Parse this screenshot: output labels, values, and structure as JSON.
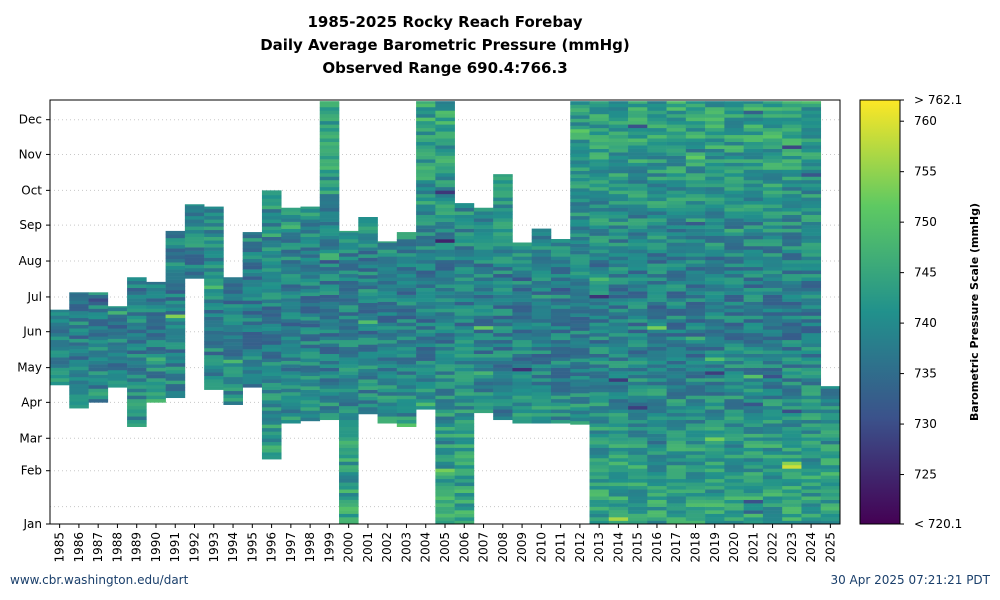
{
  "title_lines": [
    "1985-2025 Rocky Reach Forebay",
    "Daily Average Barometric Pressure (mmHg)",
    "Observed Range 690.4:766.3"
  ],
  "footer": {
    "left": "www.cbr.washington.edu/dart",
    "right": "30 Apr 2025 07:21:21 PDT"
  },
  "chart_data": {
    "type": "heatmap",
    "title": "1985-2025 Rocky Reach Forebay",
    "subtitle": "Daily Average Barometric Pressure (mmHg)",
    "observed_range": "Observed Range 690.4:766.3",
    "x_categories": [
      "1985",
      "1986",
      "1987",
      "1988",
      "1989",
      "1990",
      "1991",
      "1992",
      "1993",
      "1994",
      "1995",
      "1996",
      "1997",
      "1998",
      "1999",
      "2000",
      "2001",
      "2002",
      "2003",
      "2004",
      "2005",
      "2006",
      "2007",
      "2008",
      "2009",
      "2010",
      "2011",
      "2012",
      "2013",
      "2014",
      "2015",
      "2016",
      "2017",
      "2018",
      "2019",
      "2020",
      "2021",
      "2022",
      "2023",
      "2024",
      "2025"
    ],
    "y_categories": [
      "Jan",
      "Feb",
      "Mar",
      "Apr",
      "May",
      "Jun",
      "Jul",
      "Aug",
      "Sep",
      "Oct",
      "Nov",
      "Dec"
    ],
    "colorbar": {
      "label": "Barometric Pressure Scale (mmHg)",
      "min": 720.1,
      "max": 762.1,
      "ticks": [
        725,
        730,
        735,
        740,
        745,
        750,
        755,
        760
      ],
      "min_label": "< 720.1",
      "max_label": "> 762.1",
      "colormap": [
        "#440154",
        "#3b528b",
        "#21918c",
        "#5ec962",
        "#fde725"
      ]
    },
    "coverage": [
      {
        "year": "1985",
        "start_day": 120,
        "end_day": 185
      },
      {
        "year": "1986",
        "start_day": 100,
        "end_day": 200
      },
      {
        "year": "1987",
        "start_day": 105,
        "end_day": 200
      },
      {
        "year": "1988",
        "start_day": 118,
        "end_day": 188
      },
      {
        "year": "1989",
        "start_day": 84,
        "end_day": 213
      },
      {
        "year": "1990",
        "start_day": 105,
        "end_day": 209
      },
      {
        "year": "1991",
        "start_day": 109,
        "end_day": 253
      },
      {
        "year": "1992",
        "start_day": 212,
        "end_day": 276
      },
      {
        "year": "1993",
        "start_day": 116,
        "end_day": 274
      },
      {
        "year": "1994",
        "start_day": 103,
        "end_day": 213
      },
      {
        "year": "1995",
        "start_day": 118,
        "end_day": 252
      },
      {
        "year": "1996",
        "start_day": 56,
        "end_day": 288
      },
      {
        "year": "1997",
        "start_day": 87,
        "end_day": 273
      },
      {
        "year": "1998",
        "start_day": 89,
        "end_day": 274
      },
      {
        "year": "1999",
        "start_day": 90,
        "end_day": 365
      },
      {
        "year": "2000",
        "start_day": 0,
        "end_day": 253
      },
      {
        "year": "2001",
        "start_day": 95,
        "end_day": 265
      },
      {
        "year": "2002",
        "start_day": 87,
        "end_day": 244
      },
      {
        "year": "2003",
        "start_day": 84,
        "end_day": 252
      },
      {
        "year": "2004",
        "start_day": 99,
        "end_day": 365
      },
      {
        "year": "2005",
        "start_day": 0,
        "end_day": 365
      },
      {
        "year": "2006",
        "start_day": 0,
        "end_day": 277
      },
      {
        "year": "2007",
        "start_day": 96,
        "end_day": 273
      },
      {
        "year": "2008",
        "start_day": 90,
        "end_day": 302
      },
      {
        "year": "2009",
        "start_day": 87,
        "end_day": 243
      },
      {
        "year": "2010",
        "start_day": 87,
        "end_day": 255
      },
      {
        "year": "2011",
        "start_day": 87,
        "end_day": 246
      },
      {
        "year": "2012",
        "start_day": 86,
        "end_day": 365
      },
      {
        "year": "2013",
        "start_day": 0,
        "end_day": 365
      },
      {
        "year": "2014",
        "start_day": 0,
        "end_day": 365
      },
      {
        "year": "2015",
        "start_day": 0,
        "end_day": 365
      },
      {
        "year": "2016",
        "start_day": 0,
        "end_day": 365
      },
      {
        "year": "2017",
        "start_day": 0,
        "end_day": 365
      },
      {
        "year": "2018",
        "start_day": 0,
        "end_day": 365
      },
      {
        "year": "2019",
        "start_day": 0,
        "end_day": 365
      },
      {
        "year": "2020",
        "start_day": 0,
        "end_day": 365
      },
      {
        "year": "2021",
        "start_day": 0,
        "end_day": 365
      },
      {
        "year": "2022",
        "start_day": 0,
        "end_day": 365
      },
      {
        "year": "2023",
        "start_day": 0,
        "end_day": 365
      },
      {
        "year": "2024",
        "start_day": 0,
        "end_day": 365
      },
      {
        "year": "2025",
        "start_day": 0,
        "end_day": 119
      }
    ],
    "grid": true
  }
}
